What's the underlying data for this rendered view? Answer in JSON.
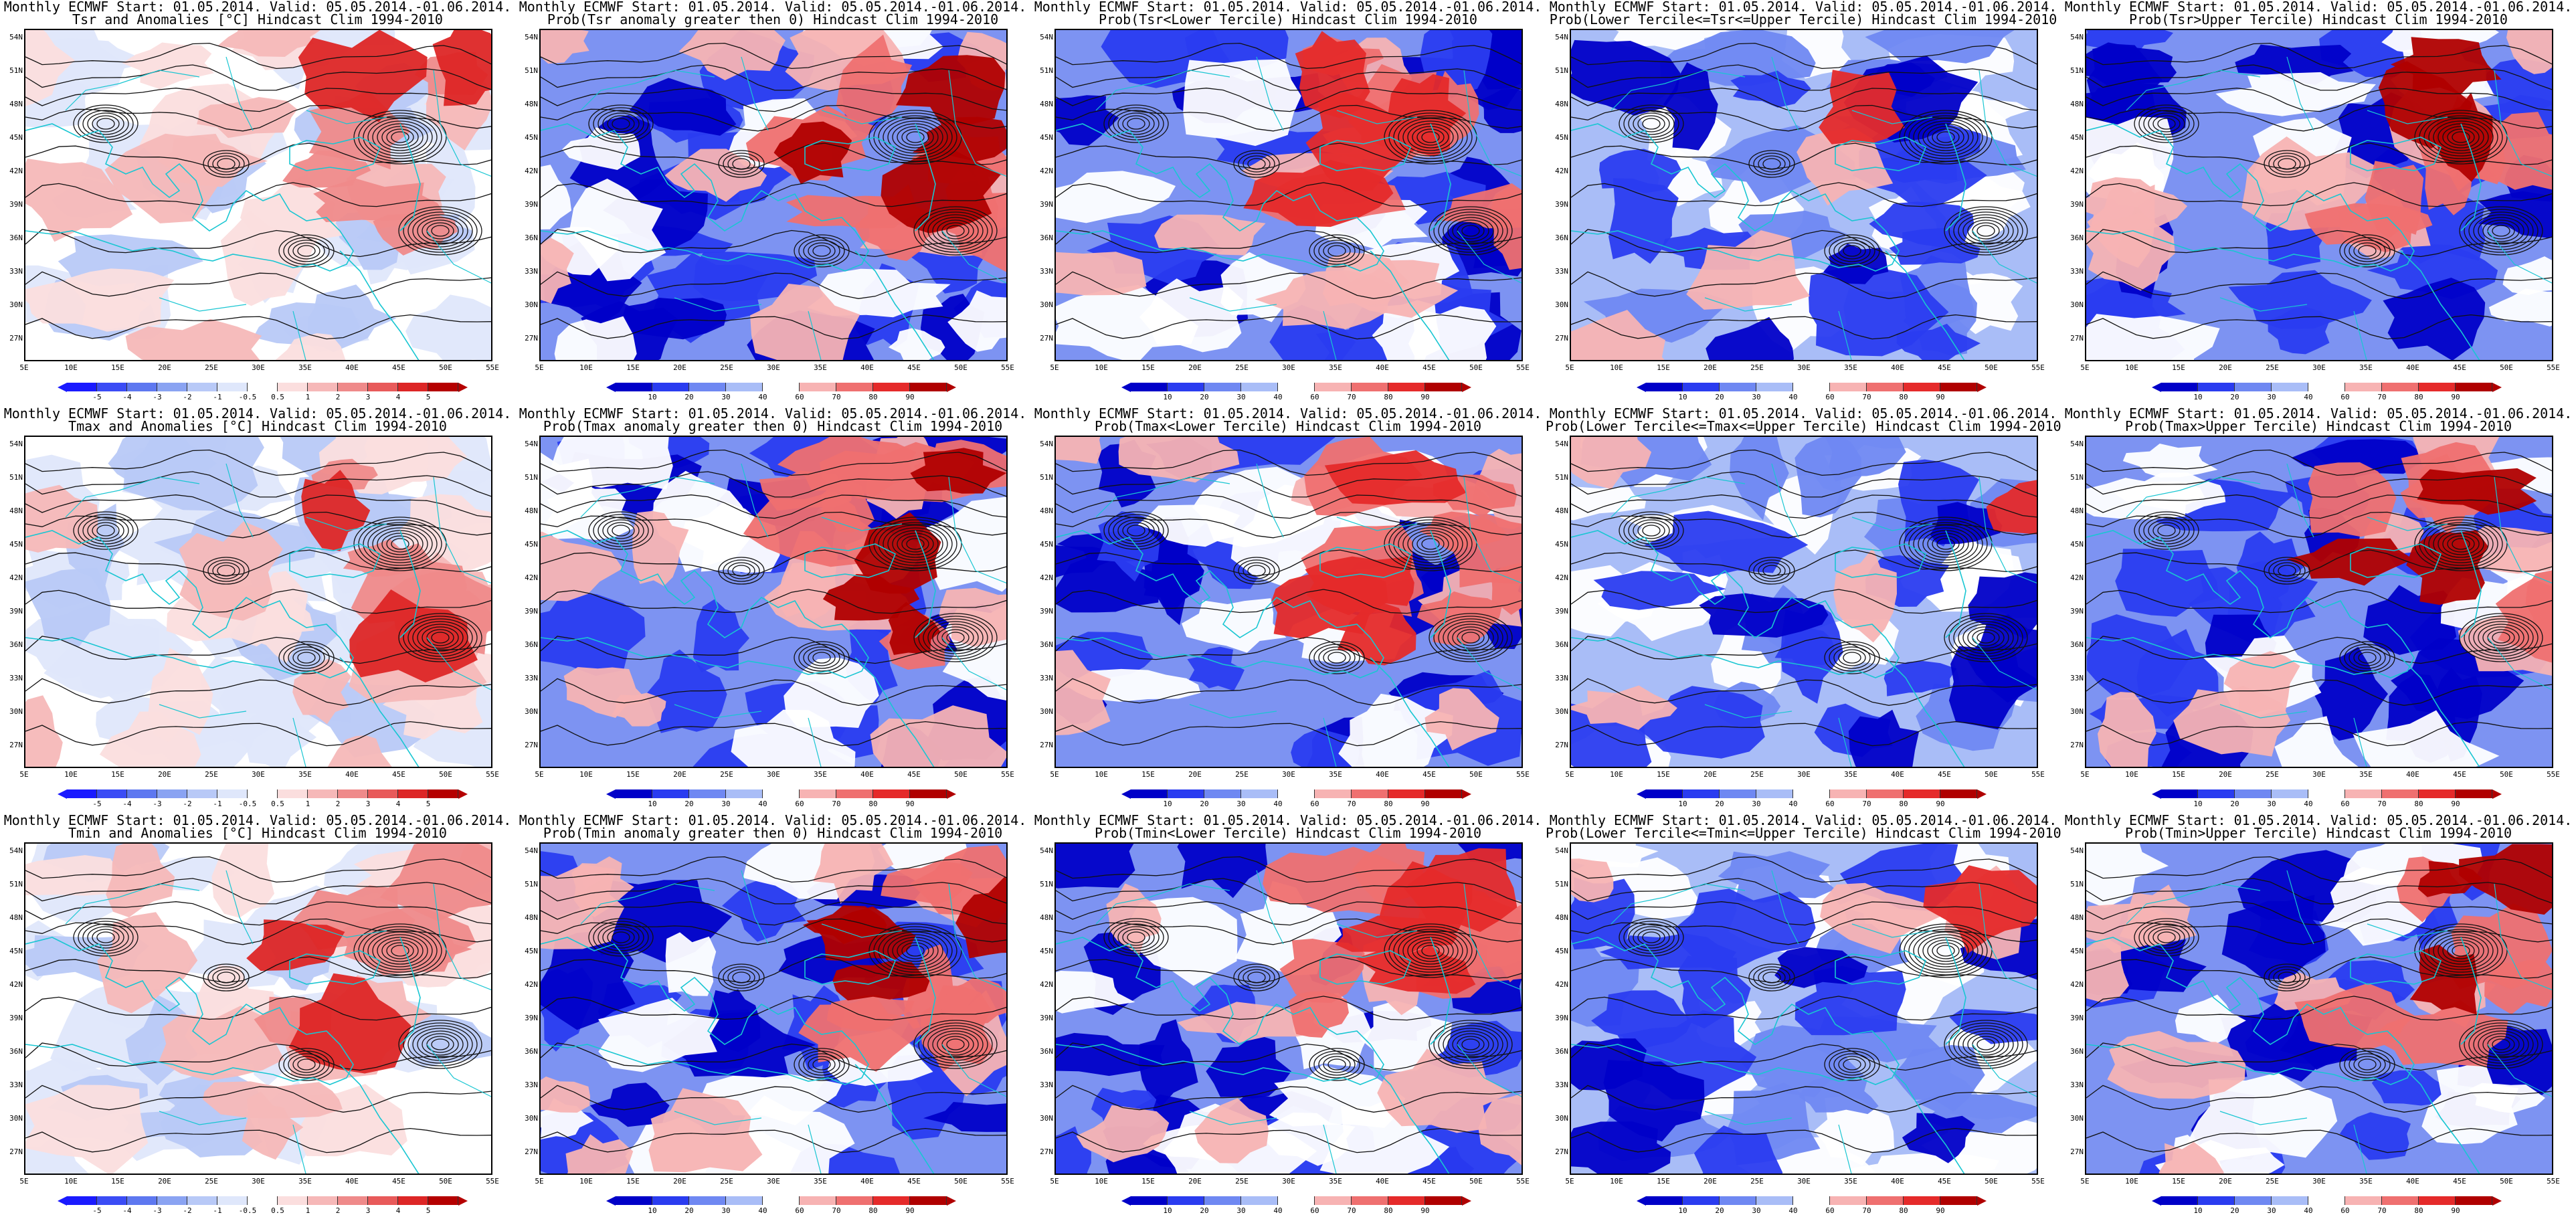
{
  "header_line1": "Monthly ECMWF Start: 01.05.2014. Valid: 05.05.2014.-01.06.2014.",
  "row_titles": [
    [
      "Tsr and Anomalies [°C] Hindcast Clim 1994-2010",
      "Prob(Tsr anomaly greater then 0) Hindcast Clim 1994-2010",
      "Prob(Tsr<Lower Tercile) Hindcast Clim 1994-2010",
      "Prob(Lower Tercile<=Tsr<=Upper Tercile) Hindcast Clim 1994-2010",
      "Prob(Tsr>Upper Tercile) Hindcast Clim 1994-2010"
    ],
    [
      "Tmax and Anomalies [°C] Hindcast Clim 1994-2010",
      "Prob(Tmax anomaly greater then 0) Hindcast Clim 1994-2010",
      "Prob(Tmax<Lower Tercile) Hindcast Clim 1994-2010",
      "Prob(Lower Tercile<=Tmax<=Upper Tercile) Hindcast Clim 1994-2010",
      "Prob(Tmax>Upper Tercile) Hindcast Clim 1994-2010"
    ],
    [
      "Tmin and Anomalies [°C] Hindcast Clim 1994-2010",
      "Prob(Tmin anomaly greater then 0) Hindcast Clim 1994-2010",
      "Prob(Tmin<Lower Tercile) Hindcast Clim 1994-2010",
      "Prob(Lower Tercile<=Tmin<=Upper Tercile) Hindcast Clim 1994-2010",
      "Prob(Tmin>Upper Tercile) Hindcast Clim 1994-2010"
    ]
  ],
  "lat_labels": [
    "54N",
    "51N",
    "48N",
    "45N",
    "42N",
    "39N",
    "36N",
    "33N",
    "30N",
    "27N"
  ],
  "lon_labels": [
    "5E",
    "10E",
    "15E",
    "20E",
    "25E",
    "30E",
    "35E",
    "40E",
    "45E",
    "50E",
    "55E"
  ],
  "anomaly_scale": {
    "labels": [
      "-5",
      "-4",
      "-3",
      "-2",
      "-1",
      "-0.5",
      "0.5",
      "1",
      "2",
      "3",
      "4",
      "5"
    ],
    "colors": [
      "#1a1aff",
      "#3b4cf5",
      "#5e78f0",
      "#8aa3f2",
      "#b8c9f7",
      "#dfe7fb",
      "#ffffff",
      "#fbdede",
      "#f6b8b8",
      "#ef8a8a",
      "#e85a5a",
      "#dd2626",
      "#b50000"
    ]
  },
  "probability_scale": {
    "labels": [
      "10",
      "20",
      "30",
      "40",
      "60",
      "70",
      "80",
      "90"
    ],
    "colors": [
      "#0000c8",
      "#2a3cf0",
      "#6f88f2",
      "#a9bdf7",
      "#ffffff",
      "#f7b3b3",
      "#ef7070",
      "#e52a2a",
      "#b00000"
    ]
  },
  "panel_types": [
    [
      "anomaly",
      "prob-warm",
      "prob-cold",
      "prob-mid",
      "prob-warm2"
    ],
    [
      "anomaly",
      "prob-warm",
      "prob-cold",
      "prob-mid",
      "prob-warm2"
    ],
    [
      "anomaly",
      "prob-warm",
      "prob-cold",
      "prob-mid",
      "prob-warm2"
    ]
  ]
}
